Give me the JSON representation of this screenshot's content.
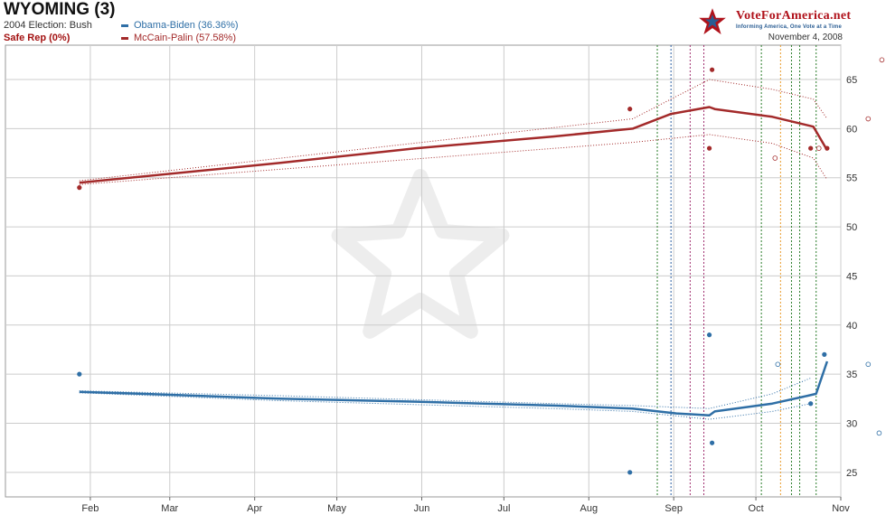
{
  "header": {
    "title": "WYOMING (3)",
    "election": "2004 Election: Bush",
    "status": "Safe Rep (0%)",
    "date": "November 4, 2008"
  },
  "logo": {
    "name": "VoteForAmerica.net",
    "tagline": "Informing America, One Vote at a Time"
  },
  "colors": {
    "obama": "#2f6fa6",
    "mccain": "#a32a2a",
    "status": "#a31111",
    "grid": "#cccccc"
  },
  "chart_data": {
    "type": "line",
    "title": "WYOMING (3)",
    "xaxis": {
      "ticks": [
        "Feb",
        "Mar",
        "Apr",
        "May",
        "Jun",
        "Jul",
        "Aug",
        "Sep",
        "Oct",
        "Nov"
      ],
      "range_days": [
        0,
        305
      ]
    },
    "yaxis": {
      "ticks": [
        25,
        30,
        35,
        40,
        45,
        50,
        55,
        60,
        65
      ],
      "ylim": [
        22.5,
        68.5
      ],
      "position": "right"
    },
    "grid": true,
    "series": [
      {
        "name": "Obama-Biden (36.36%)",
        "color": "#2f6fa6",
        "trend": [
          [
            27,
            33.2
          ],
          [
            50,
            33.0
          ],
          [
            100,
            32.5
          ],
          [
            150,
            32.2
          ],
          [
            200,
            31.8
          ],
          [
            229,
            31.5
          ],
          [
            245,
            31.0
          ],
          [
            257,
            30.8
          ],
          [
            259,
            31.2
          ],
          [
            280,
            32.0
          ],
          [
            293,
            32.8
          ],
          [
            296,
            33.0
          ],
          [
            300,
            36.3
          ]
        ],
        "band_upper": [
          [
            27,
            33.3
          ],
          [
            100,
            32.8
          ],
          [
            200,
            32.0
          ],
          [
            229,
            31.8
          ],
          [
            257,
            31.5
          ],
          [
            280,
            33.0
          ],
          [
            294,
            34.6
          ]
        ],
        "band_lower": [
          [
            27,
            33.1
          ],
          [
            100,
            32.3
          ],
          [
            200,
            31.5
          ],
          [
            229,
            31.2
          ],
          [
            257,
            30.4
          ],
          [
            280,
            31.2
          ],
          [
            294,
            32.0
          ]
        ],
        "polls": [
          [
            27,
            35
          ],
          [
            228,
            25
          ],
          [
            257,
            39
          ],
          [
            258,
            28
          ],
          [
            294,
            32
          ],
          [
            299,
            37
          ]
        ],
        "open_polls": [
          [
            282,
            36
          ],
          [
            315,
            36
          ],
          [
            319,
            29
          ]
        ]
      },
      {
        "name": "McCain-Palin (57.58%)",
        "color": "#a32a2a",
        "trend": [
          [
            27,
            54.5
          ],
          [
            100,
            56.5
          ],
          [
            150,
            58.0
          ],
          [
            200,
            59.2
          ],
          [
            229,
            60.0
          ],
          [
            243,
            61.5
          ],
          [
            257,
            62.2
          ],
          [
            259,
            62.0
          ],
          [
            280,
            61.2
          ],
          [
            295,
            60.2
          ],
          [
            300,
            57.8
          ]
        ],
        "band_upper": [
          [
            27,
            54.7
          ],
          [
            229,
            61.0
          ],
          [
            257,
            65.0
          ],
          [
            280,
            64.0
          ],
          [
            295,
            63.0
          ],
          [
            300,
            61.0
          ]
        ],
        "band_lower": [
          [
            27,
            54.3
          ],
          [
            229,
            58.6
          ],
          [
            257,
            59.4
          ],
          [
            280,
            58.5
          ],
          [
            295,
            57.0
          ],
          [
            300,
            54.8
          ]
        ],
        "polls": [
          [
            27,
            54
          ],
          [
            228,
            62
          ],
          [
            257,
            58
          ],
          [
            258,
            66
          ],
          [
            294,
            58
          ],
          [
            300,
            58
          ]
        ],
        "open_polls": [
          [
            281,
            57
          ],
          [
            297,
            58
          ],
          [
            315,
            61
          ],
          [
            320,
            67
          ]
        ]
      }
    ],
    "events": [
      {
        "day": 238,
        "color": "#2a7d2a"
      },
      {
        "day": 243,
        "color": "#2a5ea0"
      },
      {
        "day": 250,
        "color": "#a03070"
      },
      {
        "day": 255,
        "color": "#a03070"
      },
      {
        "day": 276,
        "color": "#2a7d2a"
      },
      {
        "day": 283,
        "color": "#e89a2a"
      },
      {
        "day": 287,
        "color": "#2a7d2a"
      },
      {
        "day": 290,
        "color": "#2a7d2a"
      },
      {
        "day": 296,
        "color": "#2a7d2a"
      }
    ]
  }
}
